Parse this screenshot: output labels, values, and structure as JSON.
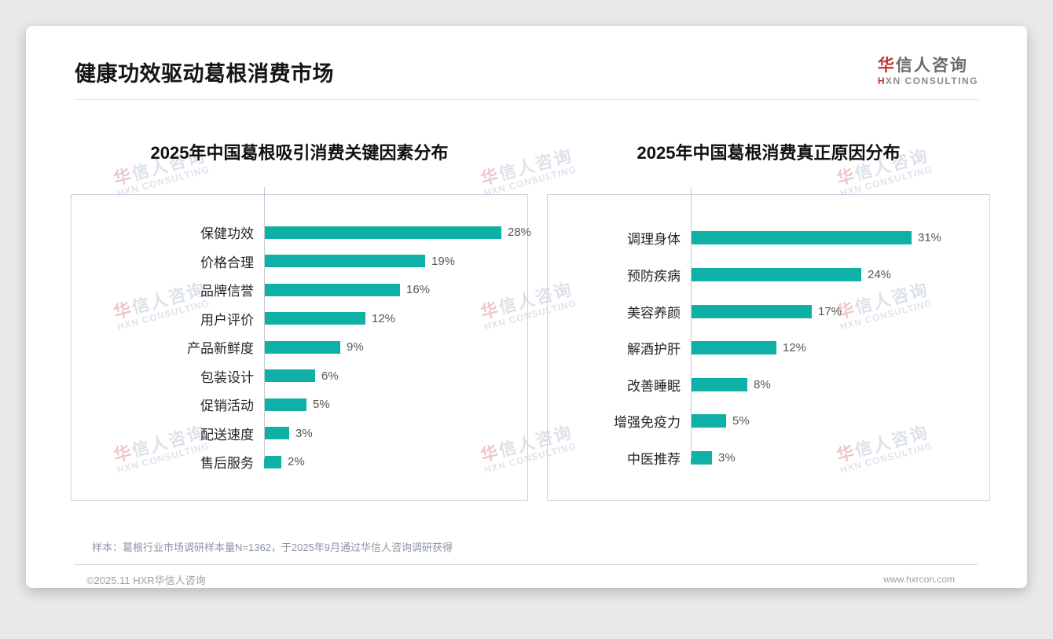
{
  "page": {
    "title": "健康功效驱动葛根消费市场"
  },
  "logo": {
    "cn_first": "华",
    "cn_rest": "信人咨询",
    "en_first": "H",
    "en_rest": "XN CONSULTING"
  },
  "watermark": {
    "cn_first": "华",
    "cn_rest": "信人咨询",
    "en": "HXN CONSULTING"
  },
  "chart_data": [
    {
      "type": "bar",
      "orientation": "horizontal",
      "title": "2025年中国葛根吸引消费关键因素分布",
      "categories": [
        "保健功效",
        "价格合理",
        "品牌信誉",
        "用户评价",
        "产品新鲜度",
        "包装设计",
        "促销活动",
        "配送速度",
        "售后服务"
      ],
      "values": [
        28,
        19,
        16,
        12,
        9,
        6,
        5,
        3,
        2
      ],
      "unit": "%",
      "value_labels": [
        "28%",
        "19%",
        "16%",
        "12%",
        "9%",
        "6%",
        "5%",
        "3%",
        "2%"
      ],
      "bar_color": "#0FB0A5",
      "xlim": [
        0,
        30
      ],
      "grid": false,
      "legend": "none"
    },
    {
      "type": "bar",
      "orientation": "horizontal",
      "title": "2025年中国葛根消费真正原因分布",
      "categories": [
        "调理身体",
        "预防疾病",
        "美容养颜",
        "解酒护肝",
        "改善睡眠",
        "增强免疫力",
        "中医推荐"
      ],
      "values": [
        31,
        24,
        17,
        12,
        8,
        5,
        3
      ],
      "unit": "%",
      "value_labels": [
        "31%",
        "24%",
        "17%",
        "12%",
        "8%",
        "5%",
        "3%"
      ],
      "bar_color": "#0FB0A5",
      "xlim": [
        0,
        34
      ],
      "grid": false,
      "legend": "none"
    }
  ],
  "footer": {
    "sample_note": "样本：葛根行业市场调研样本量N=1362，于2025年9月通过华信人咨询调研获得",
    "copyright": "©2025.11 HXR华信人咨询",
    "website": "www.hxrcon.com"
  },
  "colors": {
    "bar": "#0FB0A5",
    "accent_red": "#C0322E",
    "panel_border": "#C7D3E0"
  }
}
